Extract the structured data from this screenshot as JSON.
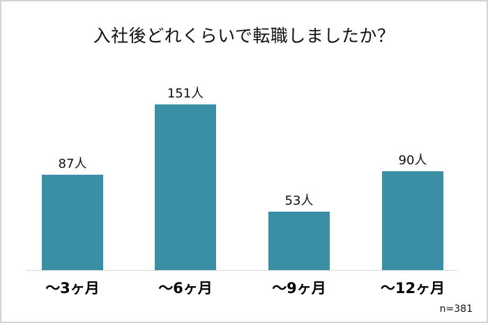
{
  "chart_data": {
    "type": "bar",
    "title": "入社後どれくらいで転職しましたか？",
    "categories": [
      "～3ヶ月",
      "～6ヶ月",
      "～9ヶ月",
      "～12ヶ月"
    ],
    "values": [
      87,
      151,
      53,
      90
    ],
    "value_labels": [
      "87人",
      "151人",
      "53人",
      "90人"
    ],
    "unit": "人",
    "xlabel": "",
    "ylabel": "",
    "ylim": [
      0,
      160
    ],
    "grid": false,
    "legend": null,
    "bar_color": "#3a8fa5",
    "annotations": [
      "n=381"
    ]
  },
  "header": {
    "title": "入社後どれくらいで転職しましたか？"
  },
  "footer": {
    "sample_size": "n=381"
  }
}
